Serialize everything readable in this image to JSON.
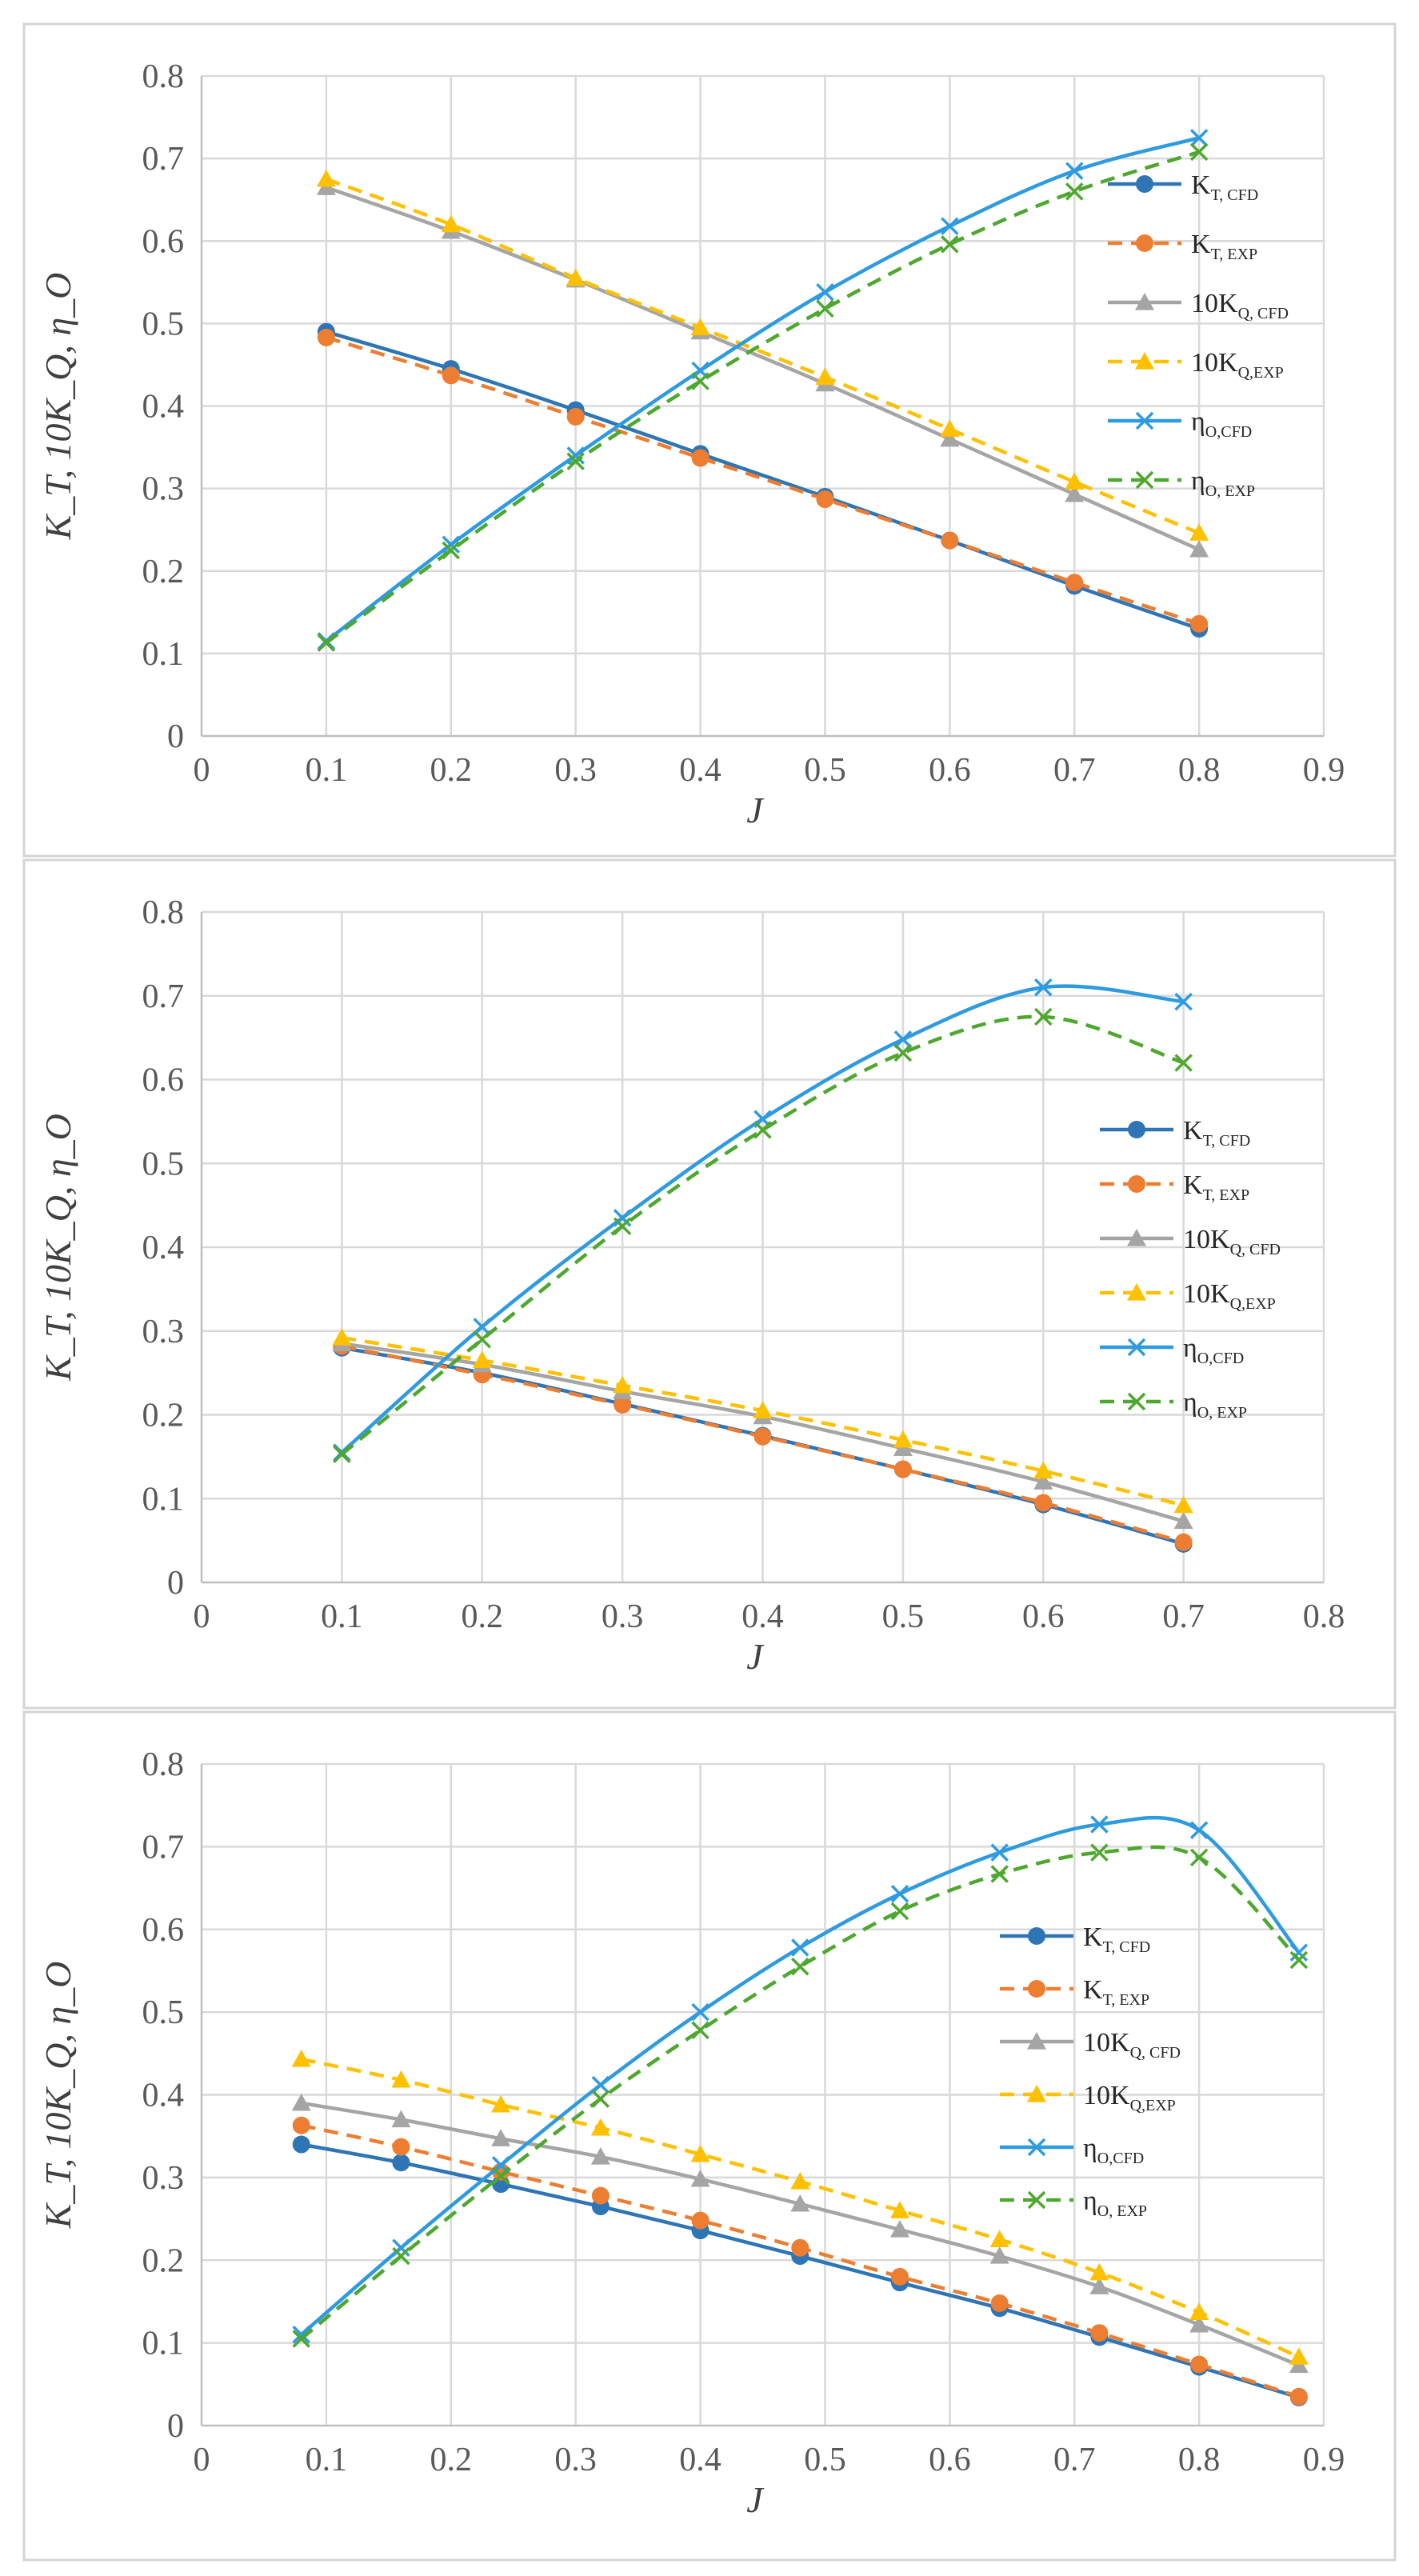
{
  "chart_data": [
    {
      "type": "line",
      "panel": "top",
      "xlabel": "J",
      "ylabel": "K_T, 10K_Q, η_O",
      "xlim": [
        0,
        0.9
      ],
      "xtick_step": 0.1,
      "ylim": [
        0,
        0.8
      ],
      "ytick_step": 0.1,
      "grid": true,
      "x_tick_labels": [
        "0",
        "0.1",
        "0.2",
        "0.3",
        "0.4",
        "0.5",
        "0.6",
        "0.7",
        "0.8",
        "0.9"
      ],
      "y_tick_labels": [
        "0",
        "0.1",
        "0.2",
        "0.3",
        "0.4",
        "0.5",
        "0.6",
        "0.7",
        "0.8"
      ],
      "legend_placement": "right",
      "series": [
        {
          "name": "K_T, CFD",
          "base": "K",
          "sub": "T, CFD",
          "color": "#2e75b6",
          "dash": "solid",
          "marker": "circle",
          "x": [
            0.1,
            0.2,
            0.3,
            0.4,
            0.5,
            0.6,
            0.7,
            0.8
          ],
          "values": [
            0.49,
            0.445,
            0.395,
            0.342,
            0.29,
            0.237,
            0.182,
            0.13
          ]
        },
        {
          "name": "K_T, EXP",
          "base": "K",
          "sub": "T, EXP",
          "color": "#ed7d31",
          "dash": "dash",
          "marker": "circle",
          "x": [
            0.1,
            0.2,
            0.3,
            0.4,
            0.5,
            0.6,
            0.7,
            0.8
          ],
          "values": [
            0.483,
            0.437,
            0.387,
            0.337,
            0.287,
            0.237,
            0.186,
            0.136
          ]
        },
        {
          "name": "10K_Q, CFD",
          "base": "10K",
          "sub": "Q, CFD",
          "color": "#a5a5a5",
          "dash": "solid",
          "marker": "triangle",
          "x": [
            0.1,
            0.2,
            0.3,
            0.4,
            0.5,
            0.6,
            0.7,
            0.8
          ],
          "values": [
            0.665,
            0.612,
            0.553,
            0.49,
            0.427,
            0.36,
            0.293,
            0.226
          ]
        },
        {
          "name": "10K_Q,EXP",
          "base": "10K",
          "sub": "Q,EXP",
          "color": "#ffc000",
          "dash": "dash",
          "marker": "triangle",
          "x": [
            0.1,
            0.2,
            0.3,
            0.4,
            0.5,
            0.6,
            0.7,
            0.8
          ],
          "values": [
            0.675,
            0.62,
            0.555,
            0.495,
            0.435,
            0.372,
            0.308,
            0.246
          ]
        },
        {
          "name": "η_O,CFD",
          "base": "η",
          "sub": "O,CFD",
          "color": "#2e9be0",
          "dash": "solid",
          "marker": "x",
          "x": [
            0.1,
            0.2,
            0.3,
            0.4,
            0.5,
            0.6,
            0.7,
            0.8
          ],
          "values": [
            0.115,
            0.232,
            0.34,
            0.443,
            0.538,
            0.618,
            0.685,
            0.725
          ]
        },
        {
          "name": "η_O, EXP",
          "base": "η",
          "sub": "O, EXP",
          "color": "#4ea72e",
          "dash": "dash",
          "marker": "x",
          "x": [
            0.1,
            0.2,
            0.3,
            0.4,
            0.5,
            0.6,
            0.7,
            0.8
          ],
          "values": [
            0.113,
            0.225,
            0.333,
            0.43,
            0.518,
            0.596,
            0.66,
            0.708
          ]
        }
      ]
    },
    {
      "type": "line",
      "panel": "middle",
      "xlabel": "J",
      "ylabel": "K_T, 10K_Q, η_O",
      "xlim": [
        0,
        0.8
      ],
      "xtick_step": 0.1,
      "ylim": [
        0,
        0.8
      ],
      "ytick_step": 0.1,
      "grid": true,
      "x_tick_labels": [
        "0",
        "0.1",
        "0.2",
        "0.3",
        "0.4",
        "0.5",
        "0.6",
        "0.7",
        "0.8"
      ],
      "y_tick_labels": [
        "0",
        "0.1",
        "0.2",
        "0.3",
        "0.4",
        "0.5",
        "0.6",
        "0.7",
        "0.8"
      ],
      "legend_placement": "right",
      "series": [
        {
          "name": "K_T, CFD",
          "base": "K",
          "sub": "T, CFD",
          "color": "#2e75b6",
          "dash": "solid",
          "marker": "circle",
          "x": [
            0.1,
            0.2,
            0.3,
            0.4,
            0.5,
            0.6,
            0.7
          ],
          "values": [
            0.28,
            0.25,
            0.213,
            0.175,
            0.135,
            0.093,
            0.046
          ]
        },
        {
          "name": "K_T, EXP",
          "base": "K",
          "sub": "T, EXP",
          "color": "#ed7d31",
          "dash": "dash",
          "marker": "circle",
          "x": [
            0.1,
            0.2,
            0.3,
            0.4,
            0.5,
            0.6,
            0.7
          ],
          "values": [
            0.282,
            0.248,
            0.212,
            0.174,
            0.135,
            0.095,
            0.048
          ]
        },
        {
          "name": "10K_Q, CFD",
          "base": "10K",
          "sub": "Q, CFD",
          "color": "#a5a5a5",
          "dash": "solid",
          "marker": "triangle",
          "x": [
            0.1,
            0.2,
            0.3,
            0.4,
            0.5,
            0.6,
            0.7
          ],
          "values": [
            0.285,
            0.26,
            0.228,
            0.198,
            0.16,
            0.12,
            0.073
          ]
        },
        {
          "name": "10K_Q,EXP",
          "base": "10K",
          "sub": "Q,EXP",
          "color": "#ffc000",
          "dash": "dash",
          "marker": "triangle",
          "x": [
            0.1,
            0.2,
            0.3,
            0.4,
            0.5,
            0.6,
            0.7
          ],
          "values": [
            0.292,
            0.265,
            0.235,
            0.205,
            0.17,
            0.133,
            0.092
          ]
        },
        {
          "name": "η_O,CFD",
          "base": "η",
          "sub": "O,CFD",
          "color": "#2e9be0",
          "dash": "solid",
          "marker": "x",
          "x": [
            0.1,
            0.2,
            0.3,
            0.4,
            0.5,
            0.6,
            0.7
          ],
          "values": [
            0.155,
            0.305,
            0.435,
            0.553,
            0.648,
            0.71,
            0.693
          ]
        },
        {
          "name": "η_O, EXP",
          "base": "η",
          "sub": "O, EXP",
          "color": "#4ea72e",
          "dash": "dash",
          "marker": "x",
          "x": [
            0.1,
            0.2,
            0.3,
            0.4,
            0.5,
            0.6,
            0.7
          ],
          "values": [
            0.153,
            0.29,
            0.425,
            0.54,
            0.632,
            0.675,
            0.62
          ]
        }
      ]
    },
    {
      "type": "line",
      "panel": "bottom",
      "xlabel": "J",
      "ylabel": "K_T, 10K_Q, η_O",
      "xlim": [
        0,
        0.9
      ],
      "xtick_step": 0.1,
      "ylim": [
        0,
        0.8
      ],
      "ytick_step": 0.1,
      "grid": true,
      "x_tick_labels": [
        "0",
        "0.1",
        "0.2",
        "0.3",
        "0.4",
        "0.5",
        "0.6",
        "0.7",
        "0.8",
        "0.9"
      ],
      "y_tick_labels": [
        "0",
        "0.1",
        "0.2",
        "0.3",
        "0.4",
        "0.5",
        "0.6",
        "0.7",
        "0.8"
      ],
      "legend_placement": "right",
      "series": [
        {
          "name": "K_T, CFD",
          "base": "K",
          "sub": "T, CFD",
          "color": "#2e75b6",
          "dash": "solid",
          "marker": "circle",
          "x": [
            0.08,
            0.16,
            0.24,
            0.32,
            0.4,
            0.48,
            0.56,
            0.64,
            0.72,
            0.8,
            0.88
          ],
          "values": [
            0.34,
            0.318,
            0.292,
            0.265,
            0.236,
            0.205,
            0.173,
            0.142,
            0.107,
            0.071,
            0.034
          ]
        },
        {
          "name": "K_T, EXP",
          "base": "K",
          "sub": "T, EXP",
          "color": "#ed7d31",
          "dash": "dash",
          "marker": "circle",
          "x": [
            0.08,
            0.16,
            0.24,
            0.32,
            0.4,
            0.48,
            0.56,
            0.64,
            0.72,
            0.8,
            0.88
          ],
          "values": [
            0.363,
            0.337,
            0.307,
            0.278,
            0.248,
            0.215,
            0.18,
            0.148,
            0.112,
            0.074,
            0.035
          ]
        },
        {
          "name": "10K_Q, CFD",
          "base": "10K",
          "sub": "Q, CFD",
          "color": "#a5a5a5",
          "dash": "solid",
          "marker": "triangle",
          "x": [
            0.08,
            0.16,
            0.24,
            0.32,
            0.4,
            0.48,
            0.56,
            0.64,
            0.72,
            0.8,
            0.88
          ],
          "values": [
            0.39,
            0.37,
            0.347,
            0.325,
            0.298,
            0.268,
            0.237,
            0.205,
            0.168,
            0.122,
            0.073
          ]
        },
        {
          "name": "10K_Q,EXP",
          "base": "10K",
          "sub": "Q,EXP",
          "color": "#ffc000",
          "dash": "dash",
          "marker": "triangle",
          "x": [
            0.08,
            0.16,
            0.24,
            0.32,
            0.4,
            0.48,
            0.56,
            0.64,
            0.72,
            0.8,
            0.88
          ],
          "values": [
            0.443,
            0.418,
            0.388,
            0.36,
            0.328,
            0.295,
            0.26,
            0.225,
            0.185,
            0.137,
            0.083
          ]
        },
        {
          "name": "η_O,CFD",
          "base": "η",
          "sub": "O,CFD",
          "color": "#2e9be0",
          "dash": "solid",
          "marker": "x",
          "x": [
            0.08,
            0.16,
            0.24,
            0.32,
            0.4,
            0.48,
            0.56,
            0.64,
            0.72,
            0.8,
            0.88
          ],
          "values": [
            0.11,
            0.215,
            0.315,
            0.412,
            0.5,
            0.578,
            0.643,
            0.693,
            0.727,
            0.72,
            0.572
          ]
        },
        {
          "name": "η_O, EXP",
          "base": "η",
          "sub": "O, EXP",
          "color": "#4ea72e",
          "dash": "dash",
          "marker": "x",
          "x": [
            0.08,
            0.16,
            0.24,
            0.32,
            0.4,
            0.48,
            0.56,
            0.64,
            0.72,
            0.8,
            0.88
          ],
          "values": [
            0.105,
            0.205,
            0.302,
            0.395,
            0.478,
            0.555,
            0.622,
            0.667,
            0.693,
            0.687,
            0.563
          ]
        }
      ]
    }
  ]
}
